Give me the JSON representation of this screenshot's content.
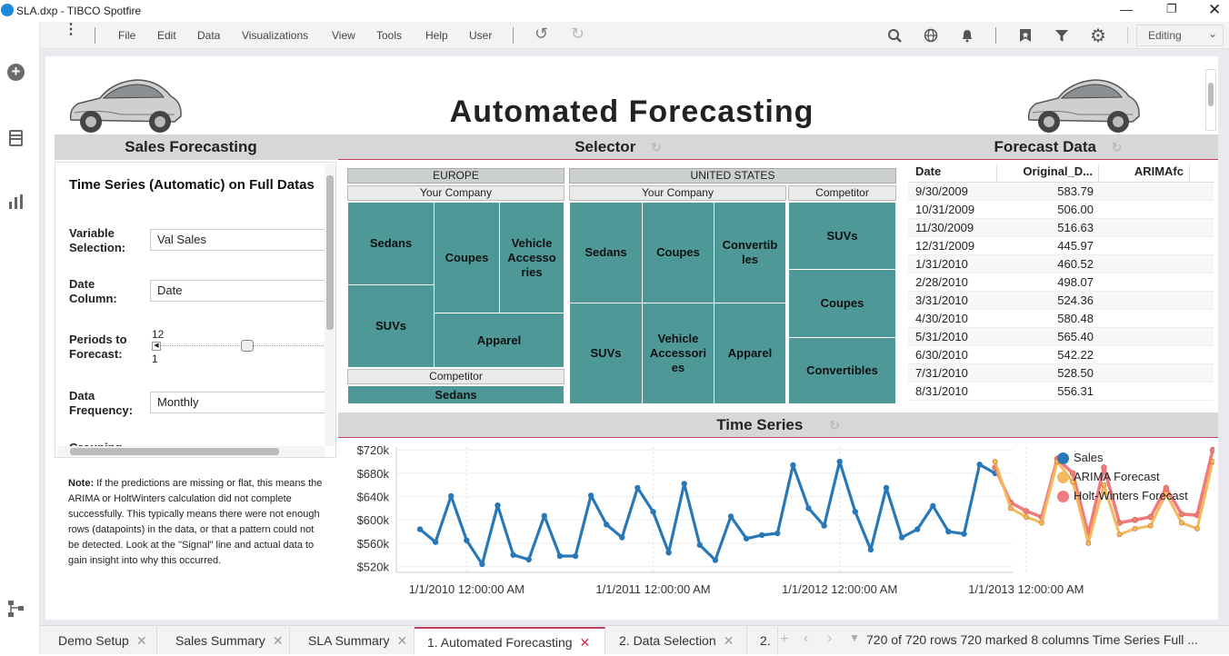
{
  "window": {
    "title": "SLA.dxp - TIBCO Spotfire"
  },
  "menu": [
    "File",
    "Edit",
    "Data",
    "Visualizations",
    "View",
    "Tools",
    "Help",
    "User"
  ],
  "mode": "Editing",
  "page": {
    "title": "Automated Forecasting"
  },
  "panels": {
    "left": "Sales Forecasting",
    "center": "Selector",
    "right": "Forecast Data",
    "bottom": "Time Series"
  },
  "form": {
    "heading": "Time Series (Automatic) on Full Datas",
    "variable_label": "Variable Selection:",
    "variable_value": "Val Sales",
    "date_label": "Date Column:",
    "date_value": "Date",
    "periods_label": "Periods to Forecast:",
    "periods_max": "12",
    "periods_min": "1",
    "freq_label": "Data Frequency:",
    "freq_value": "Monthly",
    "grouping_label": "Grouping"
  },
  "note": {
    "bold": "Note:",
    "text": " If the predictions are missing or flat, this means the ARIMA or HoltWinters calculation did not complete successfully. This typically means there were not enough rows (datapoints) in the data, or that a pattern could not be detected.  Look at the \"Signal\" line and actual data to gain insight into why this occurred."
  },
  "treemap": {
    "europe": "EUROPE",
    "us": "UNITED STATES",
    "your_company": "Your Company",
    "competitor": "Competitor",
    "eu_yc": [
      "Sedans",
      "Coupes",
      "Vehicle Accesso ries",
      "SUVs",
      "Apparel"
    ],
    "eu_comp": [
      "Sedans"
    ],
    "us_yc": [
      "Sedans",
      "Coupes",
      "Convertib les",
      "SUVs",
      "Vehicle Accessori es",
      "Apparel"
    ],
    "us_comp": [
      "SUVs",
      "Coupes",
      "Convertibles"
    ]
  },
  "table": {
    "headers": [
      "Date",
      "Original_D...",
      "ARIMAfc"
    ],
    "rows": [
      [
        "9/30/2009",
        "583.79"
      ],
      [
        "10/31/2009",
        "506.00"
      ],
      [
        "11/30/2009",
        "516.63"
      ],
      [
        "12/31/2009",
        "445.97"
      ],
      [
        "1/31/2010",
        "460.52"
      ],
      [
        "2/28/2010",
        "498.07"
      ],
      [
        "3/31/2010",
        "524.36"
      ],
      [
        "4/30/2010",
        "580.48"
      ],
      [
        "5/31/2010",
        "565.40"
      ],
      [
        "6/30/2010",
        "542.22"
      ],
      [
        "7/31/2010",
        "528.50"
      ],
      [
        "8/31/2010",
        "556.31"
      ]
    ]
  },
  "chart_data": {
    "type": "line",
    "title": "Time Series",
    "yticks": [
      "$720k",
      "$680k",
      "$640k",
      "$600k",
      "$560k",
      "$520k"
    ],
    "ylim": [
      510,
      725
    ],
    "xticks": [
      "1/1/2010 12:00:00 AM",
      "1/1/2011 12:00:00 AM",
      "1/1/2012 12:00:00 AM",
      "1/1/2013 12:00:00 AM"
    ],
    "series": [
      {
        "name": "Sales",
        "color": "#2878b8",
        "values": [
          584,
          562,
          641,
          565,
          524,
          625,
          540,
          532,
          607,
          538,
          538,
          642,
          592,
          570,
          655,
          614,
          544,
          662,
          557,
          531,
          606,
          568,
          574,
          577,
          694,
          620,
          590,
          700,
          614,
          549,
          655,
          570,
          584,
          624,
          580,
          576,
          695,
          680
        ]
      },
      {
        "name": "ARIMA Forecast",
        "color": "#f4b95a",
        "values": [
          null,
          null,
          null,
          null,
          null,
          null,
          null,
          null,
          null,
          null,
          null,
          null,
          null,
          null,
          null,
          null,
          null,
          null,
          null,
          null,
          null,
          null,
          null,
          null,
          null,
          null,
          null,
          null,
          null,
          null,
          null,
          null,
          null,
          null,
          null,
          null,
          null,
          700,
          620,
          605,
          595,
          700,
          665,
          560,
          660,
          575,
          585,
          590,
          645,
          595,
          585,
          700
        ]
      },
      {
        "name": "Holt-Winters Forecast",
        "color": "#ef7a7f",
        "values": [
          null,
          null,
          null,
          null,
          null,
          null,
          null,
          null,
          null,
          null,
          null,
          null,
          null,
          null,
          null,
          null,
          null,
          null,
          null,
          null,
          null,
          null,
          null,
          null,
          null,
          null,
          null,
          null,
          null,
          null,
          null,
          null,
          null,
          null,
          null,
          null,
          null,
          690,
          630,
          615,
          605,
          705,
          680,
          575,
          690,
          595,
          600,
          605,
          655,
          610,
          608,
          720
        ]
      }
    ]
  },
  "tabs": [
    "Demo Setup",
    "Sales Summary",
    "SLA Summary",
    "1. Automated Forecasting",
    "2. Data Selection",
    "2."
  ],
  "status": "720 of 720 rows  720 marked  8 columns  Time Series Full ..."
}
